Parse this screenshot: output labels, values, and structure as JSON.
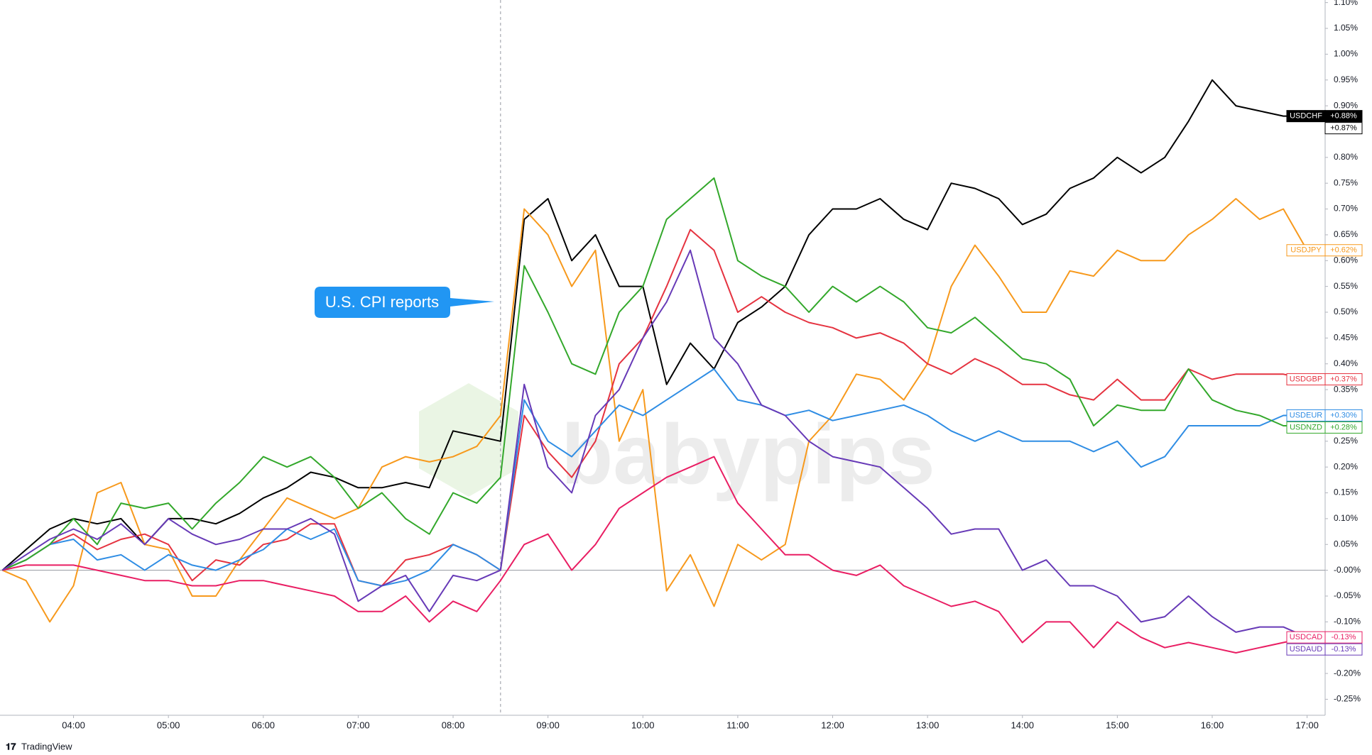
{
  "chart_data": {
    "type": "line",
    "x": [
      3.25,
      3.5,
      3.75,
      4,
      4.25,
      4.5,
      4.75,
      5,
      5.25,
      5.5,
      5.75,
      6,
      6.25,
      6.5,
      6.75,
      7,
      7.25,
      7.5,
      7.75,
      8,
      8.25,
      8.5,
      8.75,
      9,
      9.25,
      9.5,
      9.75,
      10,
      10.25,
      10.5,
      10.75,
      11,
      11.25,
      11.5,
      11.75,
      12,
      12.25,
      12.5,
      12.75,
      13,
      13.25,
      13.5,
      13.75,
      14,
      14.25,
      14.5,
      14.75,
      15,
      15.25,
      15.5,
      15.75,
      16,
      16.25,
      16.5,
      16.75,
      17
    ],
    "xlim": [
      3.27,
      17.19
    ],
    "xticks": [
      {
        "value": 4,
        "label": "04:00"
      },
      {
        "value": 5,
        "label": "05:00"
      },
      {
        "value": 6,
        "label": "06:00"
      },
      {
        "value": 7,
        "label": "07:00"
      },
      {
        "value": 8,
        "label": "08:00"
      },
      {
        "value": 9,
        "label": "09:00"
      },
      {
        "value": 10,
        "label": "10:00"
      },
      {
        "value": 11,
        "label": "11:00"
      },
      {
        "value": 12,
        "label": "12:00"
      },
      {
        "value": 13,
        "label": "13:00"
      },
      {
        "value": 14,
        "label": "14:00"
      },
      {
        "value": 15,
        "label": "15:00"
      },
      {
        "value": 16,
        "label": "16:00"
      },
      {
        "value": 17,
        "label": "17:00"
      }
    ],
    "ylim": [
      -0.281,
      1.105
    ],
    "yticks": [
      {
        "value": 1.1,
        "label": "1.10%"
      },
      {
        "value": 1.05,
        "label": "1.05%"
      },
      {
        "value": 1.0,
        "label": "1.00%"
      },
      {
        "value": 0.95,
        "label": "0.95%"
      },
      {
        "value": 0.9,
        "label": "0.90%"
      },
      {
        "value": 0.85,
        "label": "0.85%"
      },
      {
        "value": 0.8,
        "label": "0.80%"
      },
      {
        "value": 0.75,
        "label": "0.75%"
      },
      {
        "value": 0.7,
        "label": "0.70%"
      },
      {
        "value": 0.65,
        "label": "0.65%"
      },
      {
        "value": 0.6,
        "label": "0.60%"
      },
      {
        "value": 0.55,
        "label": "0.55%"
      },
      {
        "value": 0.5,
        "label": "0.50%"
      },
      {
        "value": 0.45,
        "label": "0.45%"
      },
      {
        "value": 0.4,
        "label": "0.40%"
      },
      {
        "value": 0.35,
        "label": "0.35%"
      },
      {
        "value": 0.3,
        "label": "0.30%"
      },
      {
        "value": 0.25,
        "label": "0.25%"
      },
      {
        "value": 0.2,
        "label": "0.20%"
      },
      {
        "value": 0.15,
        "label": "0.15%"
      },
      {
        "value": 0.1,
        "label": "0.10%"
      },
      {
        "value": 0.05,
        "label": "0.05%"
      },
      {
        "value": 0,
        "label": "-0.00%"
      },
      {
        "value": -0.05,
        "label": "-0.05%"
      },
      {
        "value": -0.1,
        "label": "-0.10%"
      },
      {
        "value": -0.15,
        "label": "-0.15%"
      },
      {
        "value": -0.2,
        "label": "-0.20%"
      },
      {
        "value": -0.25,
        "label": "-0.25%"
      }
    ],
    "zero_line": true,
    "event_x": 8.5,
    "annotation": "U.S. CPI reports",
    "watermark": "babypips",
    "footer": "TradingView",
    "series": [
      {
        "name": "USDCHF",
        "color": "#000000",
        "last_label": "+0.88%",
        "second_label": "+0.87%",
        "values": [
          0,
          0.04,
          0.08,
          0.1,
          0.09,
          0.1,
          0.05,
          0.1,
          0.1,
          0.09,
          0.11,
          0.14,
          0.16,
          0.19,
          0.18,
          0.16,
          0.16,
          0.17,
          0.16,
          0.27,
          0.26,
          0.25,
          0.68,
          0.72,
          0.6,
          0.65,
          0.55,
          0.55,
          0.36,
          0.44,
          0.39,
          0.48,
          0.51,
          0.55,
          0.65,
          0.7,
          0.7,
          0.72,
          0.68,
          0.66,
          0.75,
          0.74,
          0.72,
          0.67,
          0.69,
          0.74,
          0.76,
          0.8,
          0.77,
          0.8,
          0.87,
          0.95,
          0.9,
          0.89,
          0.88,
          0.88
        ]
      },
      {
        "name": "USDJPY",
        "color": "#f7991c",
        "last_label": "+0.62%",
        "values": [
          0,
          -0.02,
          -0.1,
          -0.03,
          0.15,
          0.17,
          0.05,
          0.04,
          -0.05,
          -0.05,
          0.02,
          0.08,
          0.14,
          0.12,
          0.1,
          0.12,
          0.2,
          0.22,
          0.21,
          0.22,
          0.24,
          0.3,
          0.7,
          0.65,
          0.55,
          0.62,
          0.25,
          0.35,
          -0.04,
          0.03,
          -0.07,
          0.05,
          0.02,
          0.05,
          0.25,
          0.3,
          0.38,
          0.37,
          0.33,
          0.4,
          0.55,
          0.63,
          0.57,
          0.5,
          0.5,
          0.58,
          0.57,
          0.62,
          0.6,
          0.6,
          0.65,
          0.68,
          0.72,
          0.68,
          0.7,
          0.62
        ]
      },
      {
        "name": "USDGBP",
        "color": "#e53340",
        "last_label": "+0.37%",
        "values": [
          0,
          0.02,
          0.05,
          0.07,
          0.04,
          0.06,
          0.07,
          0.05,
          -0.02,
          0.02,
          0.01,
          0.05,
          0.06,
          0.09,
          0.09,
          -0.02,
          -0.03,
          0.02,
          0.03,
          0.05,
          0.03,
          0.0,
          0.3,
          0.23,
          0.18,
          0.25,
          0.4,
          0.45,
          0.55,
          0.66,
          0.62,
          0.5,
          0.53,
          0.5,
          0.48,
          0.47,
          0.45,
          0.46,
          0.44,
          0.4,
          0.38,
          0.41,
          0.39,
          0.36,
          0.36,
          0.34,
          0.33,
          0.37,
          0.33,
          0.33,
          0.39,
          0.37,
          0.38,
          0.38,
          0.38,
          0.37
        ]
      },
      {
        "name": "USDEUR",
        "color": "#2f8de4",
        "last_label": "+0.30%",
        "values": [
          0,
          0.02,
          0.05,
          0.06,
          0.02,
          0.03,
          0.0,
          0.03,
          0.01,
          0.0,
          0.02,
          0.04,
          0.08,
          0.06,
          0.08,
          -0.02,
          -0.03,
          -0.02,
          0.0,
          0.05,
          0.03,
          0.0,
          0.33,
          0.25,
          0.22,
          0.27,
          0.32,
          0.3,
          0.33,
          0.36,
          0.39,
          0.33,
          0.32,
          0.3,
          0.31,
          0.29,
          0.3,
          0.31,
          0.32,
          0.3,
          0.27,
          0.25,
          0.27,
          0.25,
          0.25,
          0.25,
          0.23,
          0.25,
          0.2,
          0.22,
          0.28,
          0.28,
          0.28,
          0.28,
          0.3,
          0.3
        ]
      },
      {
        "name": "USDNZD",
        "color": "#33a82b",
        "last_label": "+0.28%",
        "values": [
          0,
          0.02,
          0.05,
          0.1,
          0.05,
          0.13,
          0.12,
          0.13,
          0.08,
          0.13,
          0.17,
          0.22,
          0.2,
          0.22,
          0.18,
          0.12,
          0.15,
          0.1,
          0.07,
          0.15,
          0.13,
          0.18,
          0.59,
          0.5,
          0.4,
          0.38,
          0.5,
          0.55,
          0.68,
          0.72,
          0.76,
          0.6,
          0.57,
          0.55,
          0.5,
          0.55,
          0.52,
          0.55,
          0.52,
          0.47,
          0.46,
          0.49,
          0.45,
          0.41,
          0.4,
          0.37,
          0.28,
          0.32,
          0.31,
          0.31,
          0.39,
          0.33,
          0.31,
          0.3,
          0.28,
          0.28
        ]
      },
      {
        "name": "USDCAD",
        "color": "#e91e63",
        "last_label": "-0.13%",
        "values": [
          0,
          0.01,
          0.01,
          0.01,
          0.0,
          -0.01,
          -0.02,
          -0.02,
          -0.03,
          -0.03,
          -0.02,
          -0.02,
          -0.03,
          -0.04,
          -0.05,
          -0.08,
          -0.08,
          -0.05,
          -0.1,
          -0.06,
          -0.08,
          -0.02,
          0.05,
          0.07,
          0.0,
          0.05,
          0.12,
          0.15,
          0.18,
          0.2,
          0.22,
          0.13,
          0.08,
          0.03,
          0.03,
          0.0,
          -0.01,
          0.01,
          -0.03,
          -0.05,
          -0.07,
          -0.06,
          -0.08,
          -0.14,
          -0.1,
          -0.1,
          -0.15,
          -0.1,
          -0.13,
          -0.15,
          -0.14,
          -0.15,
          -0.16,
          -0.15,
          -0.14,
          -0.13
        ]
      },
      {
        "name": "USDAUD",
        "color": "#673ab7",
        "last_label": "-0.13%",
        "values": [
          0,
          0.03,
          0.06,
          0.08,
          0.06,
          0.09,
          0.05,
          0.1,
          0.07,
          0.05,
          0.06,
          0.08,
          0.08,
          0.1,
          0.07,
          -0.06,
          -0.03,
          -0.01,
          -0.08,
          -0.01,
          -0.02,
          0.0,
          0.36,
          0.2,
          0.15,
          0.3,
          0.35,
          0.45,
          0.52,
          0.62,
          0.45,
          0.4,
          0.32,
          0.3,
          0.25,
          0.22,
          0.21,
          0.2,
          0.16,
          0.12,
          0.07,
          0.08,
          0.08,
          0.0,
          0.02,
          -0.03,
          -0.03,
          -0.05,
          -0.1,
          -0.09,
          -0.05,
          -0.09,
          -0.12,
          -0.11,
          -0.11,
          -0.13
        ]
      }
    ]
  }
}
